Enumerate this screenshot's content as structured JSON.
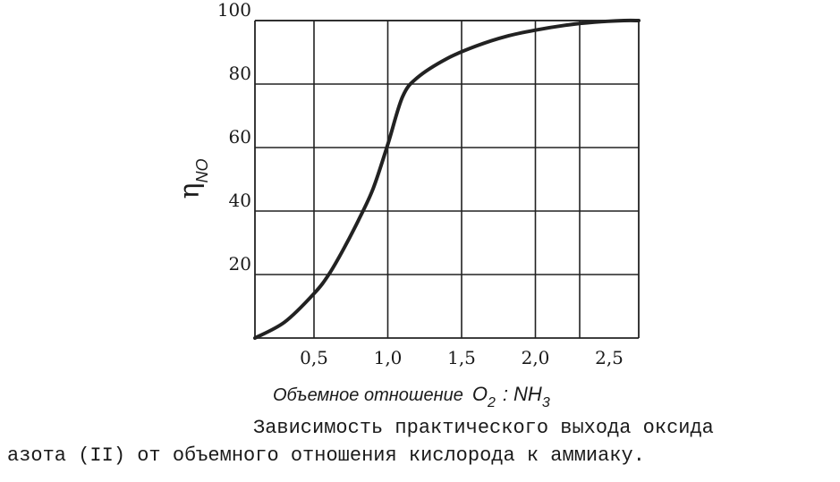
{
  "chart_data": {
    "type": "line",
    "xlabel": {
      "text": "Объемное отношение",
      "ratio": {
        "o": "O",
        "o_sub": "2",
        "sep": ":",
        "nh": "NH",
        "nh_sub": "3"
      }
    },
    "ylabel": {
      "symbol": "η",
      "subscript": "NO"
    },
    "xlim": [
      0.1,
      2.7
    ],
    "ylim": [
      0,
      100
    ],
    "x_ticks": [
      {
        "value": 0.5,
        "label": "0,5"
      },
      {
        "value": 1.0,
        "label": "1,0"
      },
      {
        "value": 1.5,
        "label": "1,5"
      },
      {
        "value": 2.0,
        "label": "2,0"
      },
      {
        "value": 2.5,
        "label": "2,5"
      }
    ],
    "x_grid": [
      0.5,
      1.0,
      1.5,
      2.0,
      2.3
    ],
    "y_ticks": [
      {
        "value": 20,
        "label": "20"
      },
      {
        "value": 40,
        "label": "40"
      },
      {
        "value": 60,
        "label": "60"
      },
      {
        "value": 80,
        "label": "80"
      },
      {
        "value": 100,
        "label": "100"
      }
    ],
    "grid": true,
    "series": [
      {
        "color": "#222222",
        "x": [
          0.1,
          0.3,
          0.5,
          0.6,
          0.7,
          0.8,
          0.9,
          1.0,
          1.1,
          1.2,
          1.4,
          1.6,
          1.8,
          2.0,
          2.2,
          2.4,
          2.6,
          2.7
        ],
        "y": [
          0,
          5,
          14,
          20,
          28,
          37,
          47,
          61,
          76,
          82,
          88,
          92,
          95,
          97,
          98.5,
          99.5,
          100,
          100
        ]
      }
    ]
  },
  "caption": {
    "line1": "Зависимость практического выхода оксида",
    "line2": "азота (II) от объемного отношения кислорода к аммиаку."
  }
}
